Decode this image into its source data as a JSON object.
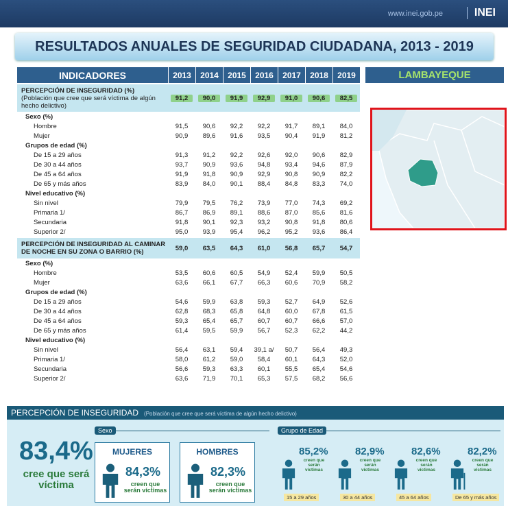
{
  "header": {
    "url": "www.inei.gob.pe",
    "logo": "INEI"
  },
  "title": "RESULTADOS ANUALES DE SEGURIDAD CIUDADANA, 2013 - 2019",
  "region": "LAMBAYEQUE",
  "table": {
    "header": [
      "INDICADORES",
      "2013",
      "2014",
      "2015",
      "2016",
      "2017",
      "2018",
      "2019"
    ],
    "sections": [
      {
        "title": "PERCEPCIÓN DE INSEGURIDAD (%)",
        "subtitle": "(Población que cree que será víctima de algún hecho delictivo)",
        "values": [
          "91,2",
          "90,0",
          "91,9",
          "92,9",
          "91,0",
          "90,6",
          "82,5"
        ],
        "groups": [
          {
            "label": "Sexo (%)",
            "rows": [
              {
                "label": "Hombre",
                "values": [
                  "91,5",
                  "90,6",
                  "92,2",
                  "92,2",
                  "91,7",
                  "89,1",
                  "84,0"
                ]
              },
              {
                "label": "Mujer",
                "values": [
                  "90,9",
                  "89,6",
                  "91,6",
                  "93,5",
                  "90,4",
                  "91,9",
                  "81,2"
                ]
              }
            ]
          },
          {
            "label": "Grupos de edad (%)",
            "rows": [
              {
                "label": "De 15 a 29 años",
                "values": [
                  "91,3",
                  "91,2",
                  "92,2",
                  "92,6",
                  "92,0",
                  "90,6",
                  "82,9"
                ]
              },
              {
                "label": "De 30 a 44 años",
                "values": [
                  "93,7",
                  "90,9",
                  "93,6",
                  "94,8",
                  "93,4",
                  "94,6",
                  "87,9"
                ]
              },
              {
                "label": "De 45 a 64 años",
                "values": [
                  "91,9",
                  "91,8",
                  "90,9",
                  "92,9",
                  "90,8",
                  "90,9",
                  "82,2"
                ]
              },
              {
                "label": "De 65 y más años",
                "values": [
                  "83,9",
                  "84,0",
                  "90,1",
                  "88,4",
                  "84,8",
                  "83,3",
                  "74,0"
                ]
              }
            ]
          },
          {
            "label": "Nivel educativo (%)",
            "rows": [
              {
                "label": "Sin nivel",
                "values": [
                  "79,9",
                  "79,5",
                  "76,2",
                  "73,9",
                  "77,0",
                  "74,3",
                  "69,2"
                ]
              },
              {
                "label": "Primaria 1/",
                "values": [
                  "86,7",
                  "86,9",
                  "89,1",
                  "88,6",
                  "87,0",
                  "85,6",
                  "81,6"
                ]
              },
              {
                "label": "Secundaria",
                "values": [
                  "91,8",
                  "90,1",
                  "92,3",
                  "93,2",
                  "90,8",
                  "91,8",
                  "80,6"
                ]
              },
              {
                "label": "Superior 2/",
                "values": [
                  "95,0",
                  "93,9",
                  "95,4",
                  "96,2",
                  "95,2",
                  "93,6",
                  "86,4"
                ]
              }
            ]
          }
        ]
      },
      {
        "title": "PERCEPCIÓN DE INSEGURIDAD AL CAMINAR DE NOCHE EN SU ZONA O BARRIO (%)",
        "values": [
          "59,0",
          "63,5",
          "64,3",
          "61,0",
          "56,8",
          "65,7",
          "54,7"
        ],
        "groups": [
          {
            "label": "Sexo (%)",
            "rows": [
              {
                "label": "Hombre",
                "values": [
                  "53,5",
                  "60,6",
                  "60,5",
                  "54,9",
                  "52,4",
                  "59,9",
                  "50,5"
                ]
              },
              {
                "label": "Mujer",
                "values": [
                  "63,6",
                  "66,1",
                  "67,7",
                  "66,3",
                  "60,6",
                  "70,9",
                  "58,2"
                ]
              }
            ]
          },
          {
            "label": "Grupos de edad (%)",
            "rows": [
              {
                "label": "De 15 a 29 años",
                "values": [
                  "54,6",
                  "59,9",
                  "63,8",
                  "59,3",
                  "52,7",
                  "64,9",
                  "52,6"
                ]
              },
              {
                "label": "De 30 a 44 años",
                "values": [
                  "62,8",
                  "68,3",
                  "65,8",
                  "64,8",
                  "60,0",
                  "67,8",
                  "61,5"
                ]
              },
              {
                "label": "De 45 a 64 años",
                "values": [
                  "59,3",
                  "65,4",
                  "65,7",
                  "60,7",
                  "60,7",
                  "66,6",
                  "57,0"
                ]
              },
              {
                "label": "De 65 y más años",
                "values": [
                  "61,4",
                  "59,5",
                  "59,9",
                  "56,7",
                  "52,3",
                  "62,2",
                  "44,2"
                ]
              }
            ]
          },
          {
            "label": "Nivel educativo (%)",
            "rows": [
              {
                "label": "Sin nivel",
                "values": [
                  "56,4",
                  "63,1",
                  "59,4",
                  "39,1 a/",
                  "50,7",
                  "56,4",
                  "49,3"
                ]
              },
              {
                "label": "Primaria 1/",
                "values": [
                  "58,0",
                  "61,2",
                  "59,0",
                  "58,4",
                  "60,1",
                  "64,3",
                  "52,0"
                ]
              },
              {
                "label": "Secundaria",
                "values": [
                  "56,6",
                  "59,3",
                  "63,3",
                  "60,1",
                  "55,5",
                  "65,4",
                  "54,6"
                ]
              },
              {
                "label": "Superior 2/",
                "values": [
                  "63,6",
                  "71,9",
                  "70,1",
                  "65,3",
                  "57,5",
                  "68,2",
                  "56,6"
                ]
              }
            ]
          }
        ]
      }
    ]
  },
  "panel": {
    "title": "PERCEPCIÓN DE INSEGURIDAD",
    "subtitle": "(Población que cree que será víctima de algún hecho delictivo)",
    "total": "83,4%",
    "total_label": "cree que será víctima",
    "sexo": {
      "title": "Sexo",
      "items": [
        {
          "name": "MUJERES",
          "value": "84,3%",
          "label": "creen que serán víctimas"
        },
        {
          "name": "HOMBRES",
          "value": "82,3%",
          "label": "creen que serán víctimas"
        }
      ]
    },
    "edad": {
      "title": "Grupo de Edad",
      "items": [
        {
          "value": "85,2%",
          "label": "creen que serán víctimas",
          "age": "15 a 29 años"
        },
        {
          "value": "82,9%",
          "label": "creen que serán víctimas",
          "age": "30 a 44 años"
        },
        {
          "value": "82,6%",
          "label": "creen que serán víctimas",
          "age": "45 a 64 años"
        },
        {
          "value": "82,2%",
          "label": "creen que serán víctimas",
          "age": "De 65 y más años"
        }
      ]
    }
  }
}
